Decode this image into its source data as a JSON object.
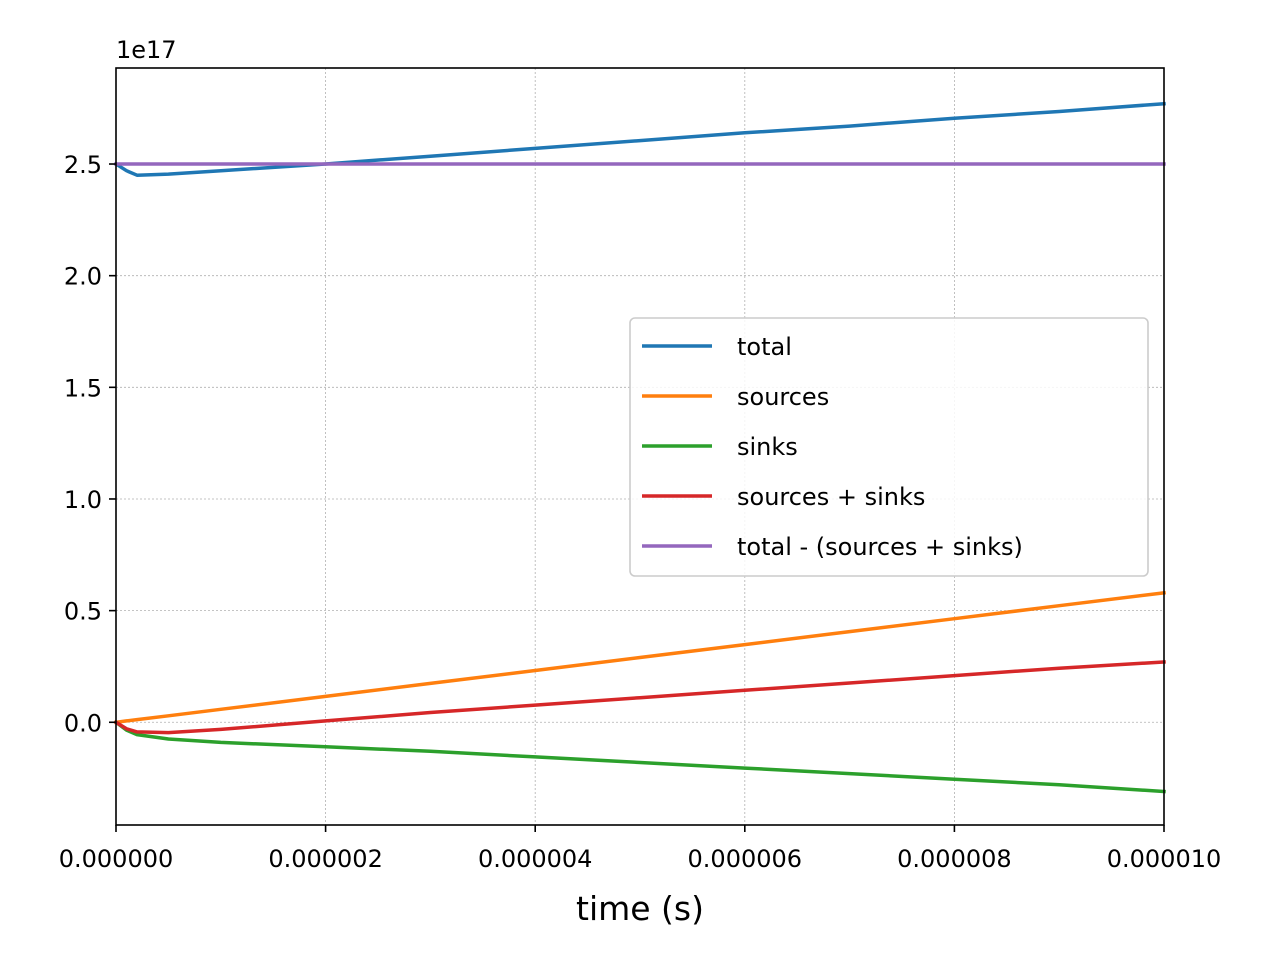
{
  "chart_data": {
    "type": "line",
    "xlabel": "time (s)",
    "ylabel": "",
    "y_offset_label": "1e17",
    "xlim": [
      0,
      1e-05
    ],
    "ylim": [
      -0.46,
      2.93
    ],
    "x_ticks": [
      0,
      2e-06,
      4e-06,
      6e-06,
      8e-06,
      1e-05
    ],
    "x_tick_labels": [
      "0.000000",
      "0.000002",
      "0.000004",
      "0.000006",
      "0.000008",
      "0.000010"
    ],
    "y_ticks": [
      0.0,
      0.5,
      1.0,
      1.5,
      2.0,
      2.5
    ],
    "y_tick_labels": [
      "0.0",
      "0.5",
      "1.0",
      "1.5",
      "2.0",
      "2.5"
    ],
    "grid": true,
    "legend_position": "center-right",
    "x": [
      0,
      1e-07,
      2e-07,
      5e-07,
      1e-06,
      2e-06,
      3e-06,
      4e-06,
      5e-06,
      6e-06,
      7e-06,
      8e-06,
      9e-06,
      1e-05
    ],
    "series": [
      {
        "name": "total",
        "color": "#1f77b4",
        "values": [
          2.5,
          2.47,
          2.45,
          2.455,
          2.47,
          2.5,
          2.535,
          2.57,
          2.605,
          2.64,
          2.67,
          2.705,
          2.735,
          2.77
        ]
      },
      {
        "name": "sources",
        "color": "#ff7f0e",
        "values": [
          0.0,
          0.006,
          0.012,
          0.029,
          0.058,
          0.116,
          0.174,
          0.232,
          0.29,
          0.348,
          0.406,
          0.464,
          0.522,
          0.58
        ]
      },
      {
        "name": "sinks",
        "color": "#2ca02c",
        "values": [
          0.0,
          -0.035,
          -0.055,
          -0.075,
          -0.09,
          -0.11,
          -0.13,
          -0.155,
          -0.18,
          -0.205,
          -0.23,
          -0.255,
          -0.28,
          -0.31
        ]
      },
      {
        "name": "sources + sinks",
        "color": "#d62728",
        "values": [
          0.0,
          -0.029,
          -0.043,
          -0.046,
          -0.032,
          0.006,
          0.044,
          0.077,
          0.11,
          0.143,
          0.176,
          0.209,
          0.242,
          0.27
        ]
      },
      {
        "name": "total - (sources + sinks)",
        "color": "#9467bd",
        "values": [
          2.5,
          2.5,
          2.5,
          2.5,
          2.5,
          2.5,
          2.5,
          2.5,
          2.5,
          2.5,
          2.5,
          2.5,
          2.5,
          2.5
        ]
      }
    ]
  }
}
